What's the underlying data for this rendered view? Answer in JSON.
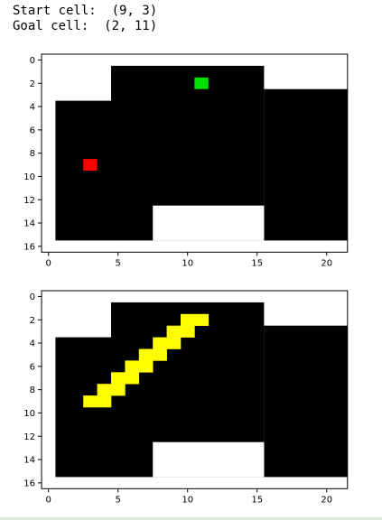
{
  "output": {
    "start_line": "Start cell:  (9, 3)",
    "goal_line": "Goal cell:  (2, 11)"
  },
  "colors": {
    "wall": "#ffffff",
    "free": "#000000",
    "start": "#ff0000",
    "goal": "#00e000",
    "path": "#ffff00"
  },
  "chart_data": [
    {
      "type": "heatmap",
      "grid_rows": 17,
      "grid_cols": 22,
      "xticks": [
        0,
        5,
        10,
        15,
        20
      ],
      "yticks": [
        0,
        2,
        4,
        6,
        8,
        10,
        12,
        14,
        16
      ],
      "free_rects": [
        {
          "r0": 1,
          "r1": 15,
          "c0": 5,
          "c1": 15
        },
        {
          "r0": 4,
          "r1": 15,
          "c0": 1,
          "c1": 4
        },
        {
          "r0": 3,
          "r1": 15,
          "c0": 16,
          "c1": 21
        }
      ],
      "wall_rects": [
        {
          "r0": 13,
          "r1": 15,
          "c0": 8,
          "c1": 15
        }
      ],
      "start": {
        "row": 9,
        "col": 3
      },
      "goal": {
        "row": 2,
        "col": 11
      },
      "path": []
    },
    {
      "type": "heatmap",
      "grid_rows": 17,
      "grid_cols": 22,
      "xticks": [
        0,
        5,
        10,
        15,
        20
      ],
      "yticks": [
        0,
        2,
        4,
        6,
        8,
        10,
        12,
        14,
        16
      ],
      "free_rects": [
        {
          "r0": 1,
          "r1": 15,
          "c0": 5,
          "c1": 15
        },
        {
          "r0": 4,
          "r1": 15,
          "c0": 1,
          "c1": 4
        },
        {
          "r0": 3,
          "r1": 15,
          "c0": 16,
          "c1": 21
        }
      ],
      "wall_rects": [
        {
          "r0": 13,
          "r1": 15,
          "c0": 8,
          "c1": 15
        }
      ],
      "start": null,
      "goal": null,
      "path": [
        [
          9,
          3
        ],
        [
          9,
          4
        ],
        [
          8,
          4
        ],
        [
          8,
          5
        ],
        [
          7,
          5
        ],
        [
          7,
          6
        ],
        [
          6,
          6
        ],
        [
          6,
          7
        ],
        [
          5,
          7
        ],
        [
          5,
          8
        ],
        [
          4,
          8
        ],
        [
          4,
          9
        ],
        [
          3,
          9
        ],
        [
          3,
          10
        ],
        [
          2,
          10
        ],
        [
          2,
          11
        ]
      ]
    }
  ]
}
